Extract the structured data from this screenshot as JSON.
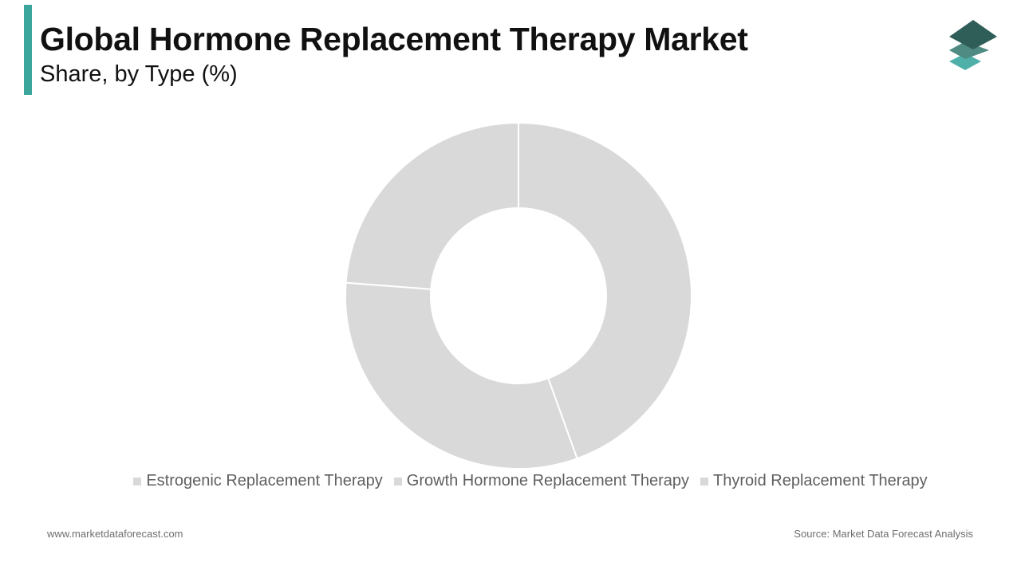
{
  "header": {
    "title": "Global Hormone Replacement Therapy Market",
    "subtitle": "Share, by Type (%)"
  },
  "brand": {
    "accent_color": "#3aa69c",
    "logo_icon": "stacked-layers-logo",
    "logo_colors": [
      "#2f5e58",
      "#4f8a83",
      "#4fb0aa"
    ]
  },
  "chart_data": {
    "type": "pie",
    "donut": true,
    "categories": [
      "Estrogenic Replacement Therapy",
      "Growth Hormone Replacement Therapy",
      "Thyroid Replacement Therapy"
    ],
    "values": [
      44.5,
      31.7,
      23.8
    ],
    "colors": [
      "#d9d9d9",
      "#d9d9d9",
      "#d9d9d9"
    ],
    "legend_position": "bottom"
  },
  "footer": {
    "website": "www.marketdataforecast.com",
    "source": "Source: Market Data Forecast Analysis"
  }
}
